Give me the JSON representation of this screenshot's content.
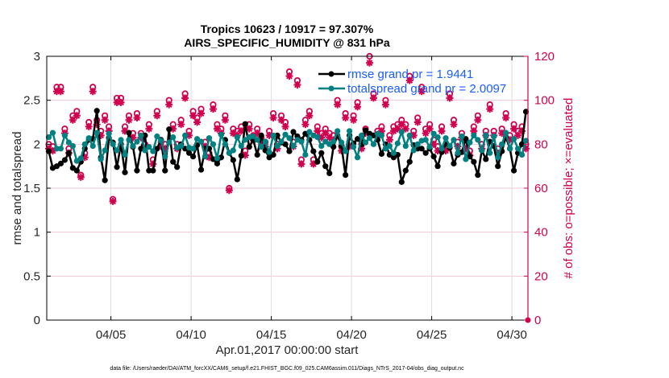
{
  "chart_data": {
    "type": "line",
    "title": [
      "Tropics 10623 / 10917 = 97.307%",
      "AIRS_SPECIFIC_HUMIDITY @ 831 hPa"
    ],
    "xlabel": "Apr.01,2017 00:00:00 start",
    "ylabel": "rmse and totalspread",
    "ylabel_right": "# of obs: o=possible; ×=evaluated",
    "footnote": "data file: /Users/raeder/DAI/ATM_forcXX/CAM6_setup/f.e21.FHIST_BGC.f09_025.CAM6assim.011/Diags_NTrS_2017-04/obs_diag_output.nc",
    "x_unit": "days since Apr.01,2017 00:00:00",
    "xlim": [
      0,
      30
    ],
    "xticks": [
      {
        "value": 4,
        "label": "04/05"
      },
      {
        "value": 9,
        "label": "04/10"
      },
      {
        "value": 14,
        "label": "04/15"
      },
      {
        "value": 19,
        "label": "04/20"
      },
      {
        "value": 24,
        "label": "04/25"
      },
      {
        "value": 29,
        "label": "04/30"
      }
    ],
    "ylim": [
      0,
      3
    ],
    "yticks": [
      "0",
      "0.5",
      "1",
      "1.5",
      "2",
      "2.5",
      "3"
    ],
    "ylim_right": [
      0,
      120
    ],
    "yticks_right": [
      "0",
      "20",
      "40",
      "60",
      "80",
      "100",
      "120"
    ],
    "grid": true,
    "legend_position": "top-right",
    "colors": {
      "rmse": "#000000",
      "totalspread": "#008080",
      "obs": "#d1004f",
      "legend_text": "#1a5cff"
    },
    "x_step_days": 0.25,
    "series": [
      {
        "name": "rmse grand pr = 1.9441",
        "axis": "left",
        "values": [
          1.92,
          1.73,
          1.75,
          1.78,
          1.82,
          1.9,
          1.73,
          1.7,
          1.8,
          1.95,
          2.05,
          2.06,
          2.38,
          1.85,
          1.59,
          2.07,
          2.02,
          1.74,
          2.0,
          1.68,
          2.13,
          1.97,
          1.7,
          1.95,
          2.1,
          1.7,
          1.7,
          1.95,
          2.05,
          1.7,
          2.17,
          1.8,
          1.74,
          2.0,
          1.95,
          1.9,
          1.86,
          1.99,
          1.71,
          1.95,
          1.95,
          1.83,
          1.78,
          1.85,
          2.05,
          1.9,
          1.82,
          1.6,
          1.87,
          2.23,
          1.97,
          2.05,
          1.88,
          2.1,
          1.93,
          1.85,
          1.88,
          2.1,
          2.02,
          2.0,
          1.92,
          2.14,
          2.09,
          2.05,
          2.12,
          2.05,
          1.92,
          1.8,
          1.9,
          1.75,
          1.67,
          1.97,
          2.1,
          1.98,
          1.65,
          2.1,
          2.01,
          2.06,
          2.0,
          2.16,
          2.12,
          2.1,
          2.05,
          1.89,
          2.0,
          1.88,
          1.85,
          1.88,
          1.57,
          1.7,
          1.8,
          1.99,
          1.95,
          1.95,
          1.9,
          1.95,
          1.86,
          1.75,
          1.91,
          2.0,
          1.96,
          1.78,
          1.88,
          1.91,
          2.06,
          1.86,
          1.8,
          1.65,
          1.93,
          1.83,
          2.03,
          1.98,
          1.75,
          1.92,
          2.08,
          1.95,
          1.7,
          1.9,
          2.0,
          2.37
        ]
      },
      {
        "name": "totalspread grand pr = 2.0097",
        "axis": "left",
        "values": [
          2.08,
          2.13,
          1.95,
          1.95,
          2.1,
          2.02,
          1.98,
          1.81,
          1.84,
          2.0,
          2.07,
          1.98,
          2.13,
          1.83,
          1.93,
          2.12,
          2.0,
          1.93,
          2.05,
          1.88,
          2.05,
          1.98,
          2.03,
          2.1,
          1.93,
          1.97,
          1.92,
          2.09,
          2.04,
          1.86,
          2.02,
          2.08,
          1.96,
          1.98,
          2.1,
          1.96,
          1.95,
          2.06,
          2.03,
          1.86,
          2.07,
          2.0,
          1.84,
          2.11,
          2.0,
          1.9,
          1.93,
          2.08,
          1.98,
          2.05,
          2.08,
          2.09,
          2.05,
          1.97,
          2.03,
          1.91,
          2.1,
          1.98,
          2.03,
          2.11,
          2.07,
          1.98,
          2.05,
          2.03,
          1.88,
          2.14,
          2.1,
          2.08,
          1.98,
          2.03,
          2.0,
          2.03,
          2.15,
          2.02,
          1.92,
          2.15,
          1.97,
          1.85,
          2.1,
          2.02,
          2.07,
          2.0,
          2.12,
          2.1,
          1.95,
          1.98,
          1.9,
          2.01,
          2.14,
          1.98,
          2.1,
          1.93,
          2.0,
          2.04,
          2.05,
          1.97,
          2.12,
          2.08,
          1.95,
          2.07,
          1.98,
          2.05,
          1.9,
          2.09,
          1.83,
          2.02,
          2.1,
          2.05,
          1.93,
          2.1,
          1.9,
          2.09,
          1.85,
          2.0,
          2.13,
          1.95,
          2.06,
          1.95,
          1.88,
          2.04
        ]
      },
      {
        "name": "possible obs",
        "axis": "right",
        "marker": "o",
        "values": [
          80,
          79,
          106,
          106,
          87,
          78,
          93,
          95,
          66,
          76,
          90,
          106,
          91,
          86,
          93,
          88,
          55,
          101,
          101,
          88,
          93,
          85,
          94,
          85,
          80,
          89,
          73,
          95,
          81,
          80,
          100,
          89,
          80,
          91,
          103,
          86,
          95,
          92,
          96,
          81,
          76,
          98,
          89,
          87,
          93,
          60,
          87,
          86,
          88,
          77,
          89,
          84,
          87,
          83,
          81,
          86,
          94,
          80,
          93,
          90,
          113,
          81,
          109,
          73,
          91,
          95,
          73,
          88,
          85,
          87,
          85,
          84,
          100,
          79,
          94,
          81,
          93,
          99,
          80,
          87,
          120,
          103,
          86,
          88,
          100,
          84,
          88,
          89,
          91,
          89,
          111,
          86,
          92,
          106,
          87,
          89,
          82,
          79,
          88,
          79,
          103,
          91,
          81,
          85,
          80,
          77,
          88,
          93,
          80,
          86,
          98,
          86,
          78,
          87,
          94,
          84,
          89,
          86,
          88,
          80
        ]
      },
      {
        "name": "evaluated obs",
        "axis": "right",
        "marker": "*",
        "values": [
          78,
          77,
          104,
          104,
          85,
          76,
          91,
          93,
          65,
          74,
          88,
          104,
          89,
          84,
          91,
          86,
          54,
          99,
          99,
          86,
          91,
          83,
          92,
          83,
          78,
          87,
          71,
          93,
          79,
          78,
          98,
          87,
          78,
          89,
          101,
          84,
          93,
          90,
          94,
          79,
          74,
          96,
          87,
          85,
          91,
          59,
          85,
          84,
          86,
          75,
          87,
          82,
          85,
          81,
          79,
          84,
          92,
          78,
          91,
          88,
          111,
          79,
          107,
          71,
          89,
          93,
          71,
          86,
          83,
          85,
          83,
          82,
          98,
          77,
          92,
          79,
          91,
          97,
          78,
          85,
          117,
          101,
          84,
          86,
          98,
          82,
          86,
          87,
          89,
          87,
          109,
          84,
          90,
          104,
          85,
          87,
          80,
          77,
          86,
          77,
          101,
          89,
          79,
          83,
          78,
          75,
          86,
          91,
          78,
          84,
          96,
          84,
          76,
          85,
          92,
          82,
          87,
          84,
          86,
          78
        ]
      }
    ],
    "final_obs_count": 0
  }
}
